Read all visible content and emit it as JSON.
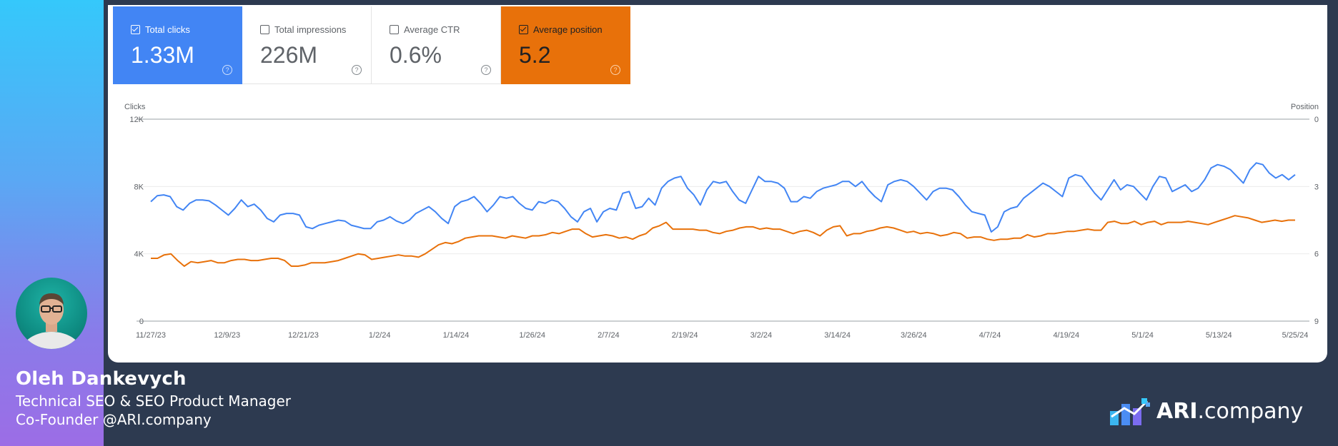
{
  "metrics": [
    {
      "label": "Total clicks",
      "value": "1.33M",
      "checked": true,
      "color": "#4285f4"
    },
    {
      "label": "Total impressions",
      "value": "226M",
      "checked": false,
      "color": "#ffffff"
    },
    {
      "label": "Average CTR",
      "value": "0.6%",
      "checked": false,
      "color": "#ffffff"
    },
    {
      "label": "Average position",
      "value": "5.2",
      "checked": true,
      "color": "#e8710a"
    }
  ],
  "chart_data": {
    "type": "line",
    "left_axis_title": "Clicks",
    "right_axis_title": "Position",
    "left_ticks": [
      "12K",
      "8K",
      "4K",
      "0"
    ],
    "right_ticks": [
      "0",
      "3",
      "6",
      "9"
    ],
    "ylim_left": [
      0,
      12000
    ],
    "ylim_right": [
      9,
      0
    ],
    "x_ticks": [
      "11/27/23",
      "12/9/23",
      "12/21/23",
      "1/2/24",
      "1/14/24",
      "1/26/24",
      "2/7/24",
      "2/19/24",
      "3/2/24",
      "3/14/24",
      "3/26/24",
      "4/7/24",
      "4/19/24",
      "5/1/24",
      "5/13/24",
      "5/25/24"
    ],
    "grid": true,
    "series": [
      {
        "axis": "left",
        "color": "#4285f4",
        "values": [
          7100,
          7450,
          7500,
          7400,
          6800,
          6600,
          7000,
          7200,
          7200,
          7150,
          6900,
          6600,
          6300,
          6700,
          7200,
          6800,
          6950,
          6600,
          6100,
          5900,
          6300,
          6400,
          6400,
          6300,
          5600,
          5500,
          5700,
          5800,
          5900,
          6000,
          5950,
          5700,
          5600,
          5500,
          5500,
          5900,
          6000,
          6200,
          5950,
          5800,
          6000,
          6400,
          6600,
          6800,
          6500,
          6100,
          5800,
          6800,
          7100,
          7200,
          7400,
          7000,
          6500,
          6900,
          7400,
          7300,
          7400,
          7000,
          6700,
          6600,
          7100,
          7000,
          7200,
          7100,
          6700,
          6200,
          5900,
          6500,
          6700,
          5900,
          6500,
          6700,
          6600,
          7600,
          7700,
          6700,
          6800,
          7300,
          6900,
          7900,
          8300,
          8500,
          8600,
          7900,
          7500,
          6900,
          7800,
          8300,
          8200,
          8300,
          7700,
          7200,
          7000,
          7800,
          8600,
          8300,
          8300,
          8200,
          7900,
          7100,
          7100,
          7400,
          7300,
          7700,
          7900,
          8000,
          8100,
          8300,
          8300,
          8000,
          8300,
          7800,
          7400,
          7100,
          8100,
          8300,
          8400,
          8300,
          8000,
          7600,
          7200,
          7700,
          7900,
          7900,
          7800,
          7400,
          6900,
          6500,
          6400,
          6300,
          5300,
          5600,
          6500,
          6700,
          6800,
          7300,
          7600,
          7900,
          8200,
          8000,
          7700,
          7400,
          8500,
          8700,
          8600,
          8100,
          7600,
          7200,
          7800,
          8400,
          7800,
          8100,
          8000,
          7600,
          7200,
          8000,
          8600,
          8500,
          7700,
          7900,
          8100,
          7700,
          7900,
          8400,
          9100,
          9300,
          9200,
          9000,
          8600,
          8200,
          9000,
          9400,
          9300,
          8800,
          8500,
          8700,
          8400,
          8700
        ]
      },
      {
        "axis": "right",
        "color": "#e8710a",
        "values": [
          6.2,
          6.2,
          6.05,
          6.0,
          6.3,
          6.55,
          6.35,
          6.4,
          6.35,
          6.3,
          6.4,
          6.4,
          6.3,
          6.25,
          6.25,
          6.3,
          6.3,
          6.25,
          6.2,
          6.2,
          6.3,
          6.55,
          6.55,
          6.5,
          6.4,
          6.4,
          6.4,
          6.35,
          6.3,
          6.2,
          6.1,
          6.0,
          6.05,
          6.25,
          6.2,
          6.15,
          6.1,
          6.05,
          6.1,
          6.1,
          6.15,
          6.0,
          5.8,
          5.6,
          5.5,
          5.55,
          5.45,
          5.3,
          5.25,
          5.2,
          5.2,
          5.2,
          5.25,
          5.3,
          5.2,
          5.25,
          5.3,
          5.2,
          5.2,
          5.15,
          5.05,
          5.1,
          5.0,
          4.9,
          4.9,
          5.1,
          5.25,
          5.2,
          5.15,
          5.2,
          5.3,
          5.25,
          5.35,
          5.2,
          5.1,
          4.85,
          4.75,
          4.6,
          4.9,
          4.9,
          4.9,
          4.9,
          4.95,
          4.95,
          5.05,
          5.1,
          5.0,
          4.95,
          4.85,
          4.8,
          4.8,
          4.9,
          4.85,
          4.9,
          4.9,
          5.0,
          5.1,
          5.0,
          4.95,
          5.05,
          5.2,
          4.95,
          4.8,
          4.75,
          5.2,
          5.1,
          5.1,
          5.0,
          4.95,
          4.85,
          4.8,
          4.85,
          4.95,
          5.05,
          5.0,
          5.1,
          5.05,
          5.1,
          5.2,
          5.15,
          5.05,
          5.1,
          5.3,
          5.25,
          5.25,
          5.35,
          5.4,
          5.35,
          5.35,
          5.3,
          5.3,
          5.15,
          5.25,
          5.2,
          5.1,
          5.1,
          5.05,
          5.0,
          5.0,
          4.95,
          4.9,
          4.95,
          4.95,
          4.6,
          4.55,
          4.65,
          4.65,
          4.55,
          4.7,
          4.6,
          4.55,
          4.7,
          4.6,
          4.6,
          4.6,
          4.55,
          4.6,
          4.65,
          4.7,
          4.6,
          4.5,
          4.4,
          4.3,
          4.35,
          4.4,
          4.5,
          4.6,
          4.55,
          4.5,
          4.55,
          4.5,
          4.5
        ]
      }
    ]
  },
  "person": {
    "name": "Oleh Dankevych",
    "role": "Technical SEO & SEO Product Manager",
    "company": "Co-Founder @ARI.company"
  },
  "brand": {
    "bold": "ARI",
    "rest": ".company"
  }
}
